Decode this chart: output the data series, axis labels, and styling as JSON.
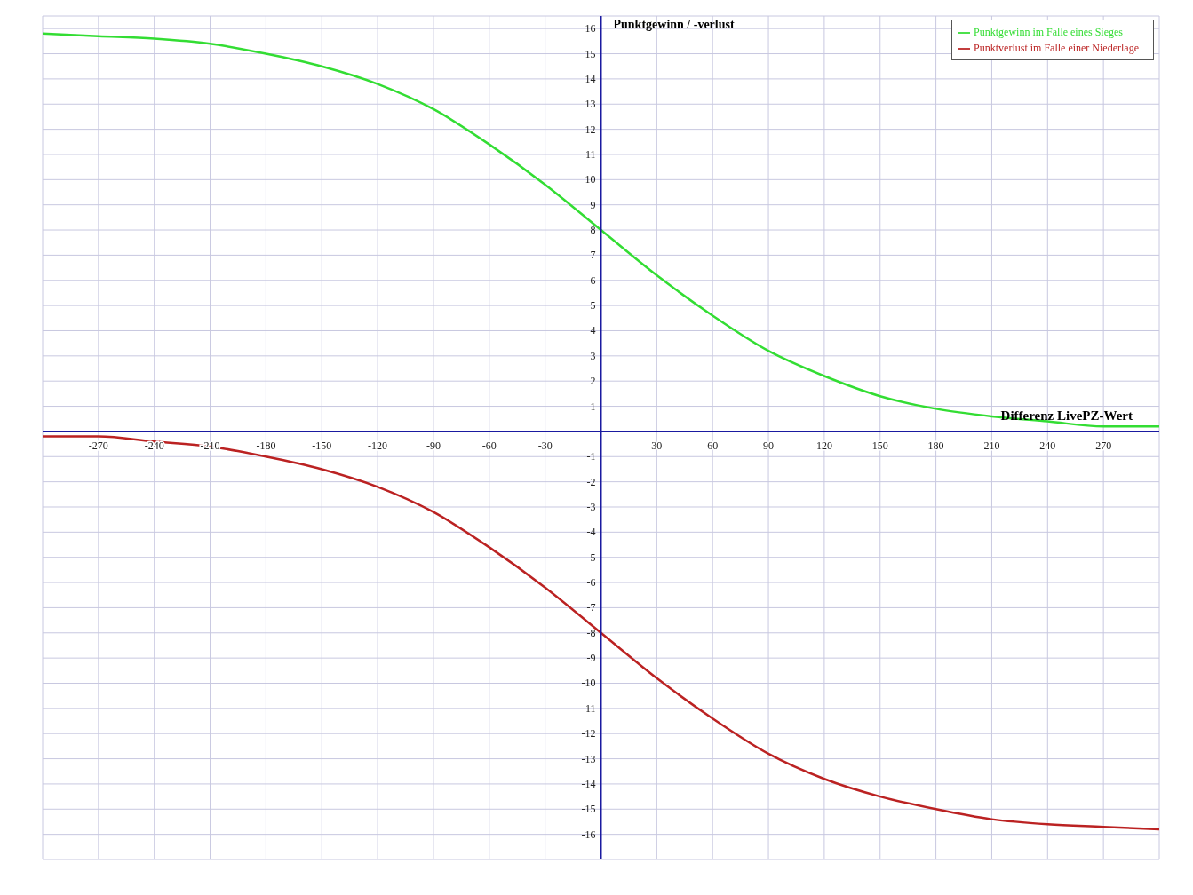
{
  "chart_data": {
    "type": "line",
    "xlabel": "Differenz LivePZ-Wert",
    "ylabel": "Punktgewinn / -verlust",
    "x": [
      -300,
      -270,
      -240,
      -210,
      -180,
      -150,
      -120,
      -90,
      -60,
      -30,
      0,
      30,
      60,
      90,
      120,
      150,
      180,
      210,
      240,
      270,
      300
    ],
    "series": [
      {
        "name": "Punktgewinn im Falle eines Sieges",
        "color": "#33dd33",
        "values": [
          15.8,
          15.7,
          15.6,
          15.4,
          15.0,
          14.5,
          13.8,
          12.8,
          11.4,
          9.8,
          8.0,
          6.2,
          4.6,
          3.2,
          2.2,
          1.4,
          0.9,
          0.6,
          0.4,
          0.2,
          0.2
        ]
      },
      {
        "name": "Punktverlust im Falle einer Niederlage",
        "color": "#bb2222",
        "values": [
          -0.2,
          -0.2,
          -0.4,
          -0.6,
          -1.0,
          -1.5,
          -2.2,
          -3.2,
          -4.6,
          -6.2,
          -8.0,
          -9.8,
          -11.4,
          -12.8,
          -13.8,
          -14.5,
          -15.0,
          -15.4,
          -15.6,
          -15.7,
          -15.8
        ]
      }
    ],
    "xlim": [
      -300,
      300
    ],
    "ylim": [
      -17,
      16.5
    ],
    "xticks": [
      -270,
      -240,
      -210,
      -180,
      -150,
      -120,
      -90,
      -60,
      -30,
      30,
      60,
      90,
      120,
      150,
      180,
      210,
      240,
      270
    ],
    "yticks": [
      -16,
      -15,
      -14,
      -13,
      -12,
      -11,
      -10,
      -9,
      -8,
      -7,
      -6,
      -5,
      -4,
      -3,
      -2,
      -1,
      1,
      2,
      3,
      4,
      5,
      6,
      7,
      8,
      9,
      10,
      11,
      12,
      13,
      14,
      15,
      16
    ],
    "grid": true,
    "legend": "top right",
    "marker": "none",
    "line_style": "solid"
  }
}
